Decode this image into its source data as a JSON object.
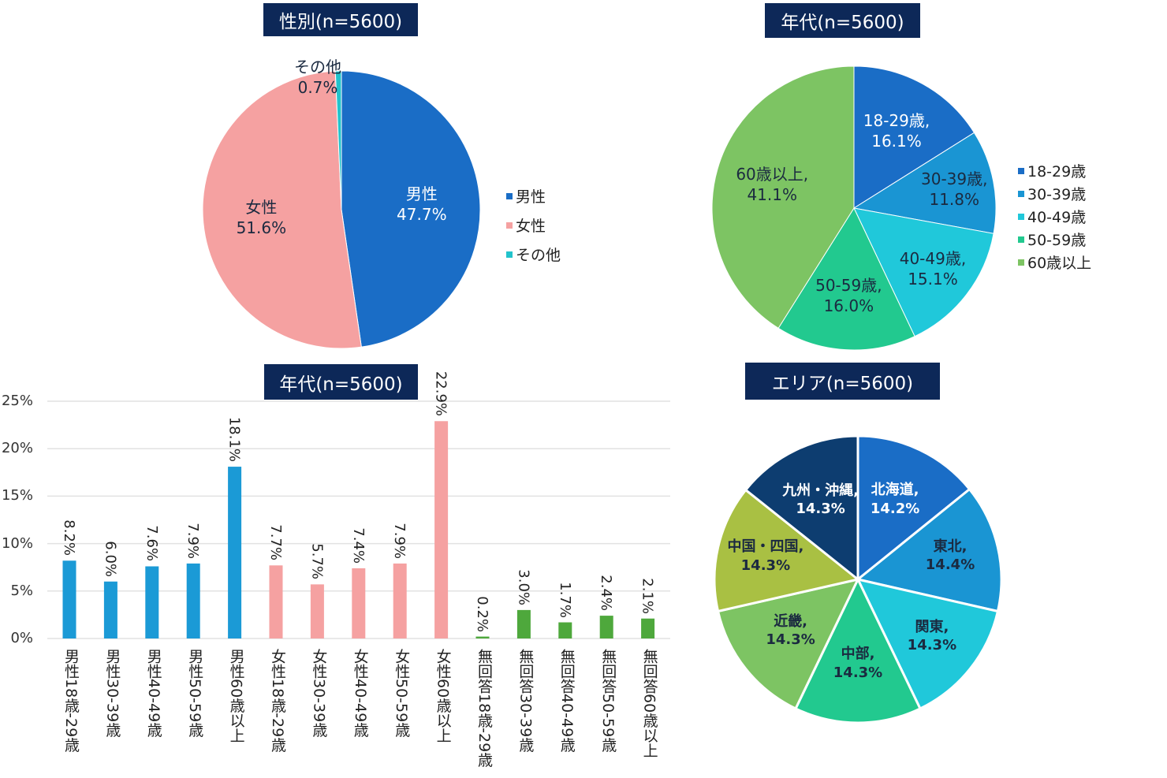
{
  "chart_data": [
    {
      "type": "pie",
      "title": "性別(n=5600)",
      "legend_position": "right",
      "slices": [
        {
          "label": "男性",
          "value": 47.7,
          "display": "47.7%",
          "color": "#1a6dc6"
        },
        {
          "label": "女性",
          "value": 51.6,
          "display": "51.6%",
          "color": "#f5a1a1"
        },
        {
          "label": "その他",
          "value": 0.7,
          "display": "0.7%",
          "color": "#22c3cc"
        }
      ]
    },
    {
      "type": "pie",
      "title": "年代(n=5600)",
      "legend_position": "right",
      "slices": [
        {
          "label": "18-29歳",
          "value": 16.1,
          "display": "16.1%",
          "color": "#1a6dc6"
        },
        {
          "label": "30-39歳",
          "value": 11.8,
          "display": "11.8%",
          "color": "#1a95d3"
        },
        {
          "label": "40-49歳",
          "value": 15.1,
          "display": "15.1%",
          "color": "#20c8da"
        },
        {
          "label": "50-59歳",
          "value": 16.0,
          "display": "16.0%",
          "color": "#22c98f"
        },
        {
          "label": "60歳以上",
          "value": 41.1,
          "display": "41.1%",
          "color": "#7dc463"
        }
      ]
    },
    {
      "type": "bar",
      "title": "年代(n=5600)",
      "ylim": [
        0,
        25
      ],
      "yticks": [
        "0%",
        "5%",
        "10%",
        "15%",
        "20%",
        "25%"
      ],
      "grid": true,
      "categories": [
        "男性18歳-29歳",
        "男性30-39歳",
        "男性40-49歳",
        "男性50-59歳",
        "男性60歳以上",
        "女性18歳-29歳",
        "女性30-39歳",
        "女性40-49歳",
        "女性50-59歳",
        "女性60歳以上",
        "無回答18歳-29歳",
        "無回答30-39歳",
        "無回答40-49歳",
        "無回答50-59歳",
        "無回答60歳以上"
      ],
      "values": [
        8.2,
        6.0,
        7.6,
        7.9,
        18.1,
        7.7,
        5.7,
        7.4,
        7.9,
        22.9,
        0.2,
        3.0,
        1.7,
        2.4,
        2.1
      ],
      "labels": [
        "8.2%",
        "6.0%",
        "7.6%",
        "7.9%",
        "18.1%",
        "7.7%",
        "5.7%",
        "7.4%",
        "7.9%",
        "22.9%",
        "0.2%",
        "3.0%",
        "1.7%",
        "2.4%",
        "2.1%"
      ],
      "colors": [
        "#1b9ad6",
        "#1b9ad6",
        "#1b9ad6",
        "#1b9ad6",
        "#1b9ad6",
        "#f5a1a1",
        "#f5a1a1",
        "#f5a1a1",
        "#f5a1a1",
        "#f5a1a1",
        "#4ea83c",
        "#4ea83c",
        "#4ea83c",
        "#4ea83c",
        "#4ea83c"
      ]
    },
    {
      "type": "pie",
      "title": "エリア(n=5600)",
      "slices": [
        {
          "label": "北海道",
          "value": 14.2,
          "display": "14.2%",
          "color": "#1a6dc6"
        },
        {
          "label": "東北",
          "value": 14.4,
          "display": "14.4%",
          "color": "#1a95d3"
        },
        {
          "label": "関東",
          "value": 14.3,
          "display": "14.3%",
          "color": "#20c8da"
        },
        {
          "label": "中部",
          "value": 14.3,
          "display": "14.3%",
          "color": "#22c98f"
        },
        {
          "label": "近畿",
          "value": 14.3,
          "display": "14.3%",
          "color": "#7dc463"
        },
        {
          "label": "中国・四国",
          "value": 14.3,
          "display": "14.3%",
          "color": "#a9c043"
        },
        {
          "label": "九州・沖縄",
          "value": 14.3,
          "display": "14.3%",
          "color": "#0d3d70"
        }
      ]
    }
  ]
}
